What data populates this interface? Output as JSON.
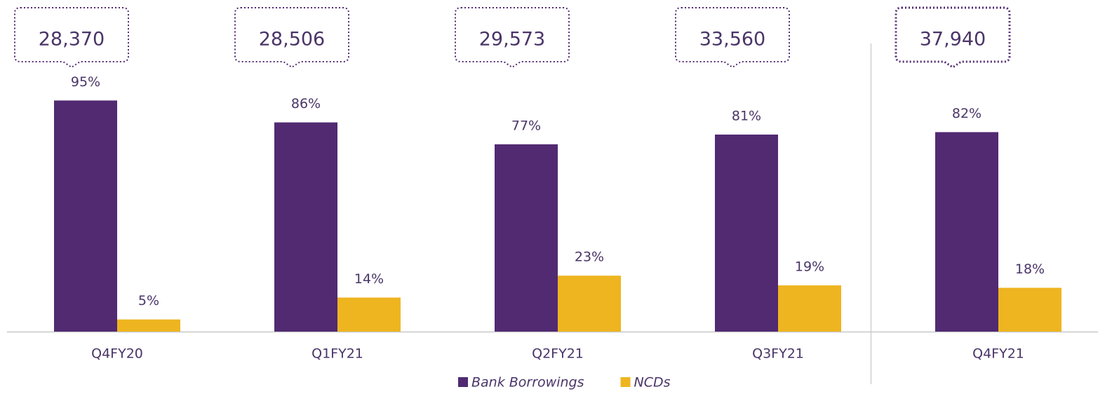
{
  "chart_data": {
    "type": "bar",
    "categories": [
      "Q4FY20",
      "Q1FY21",
      "Q2FY21",
      "Q3FY21",
      "Q4FY21"
    ],
    "series": [
      {
        "name": "Bank Borrowings",
        "color": "#512a72",
        "values": [
          95,
          86,
          77,
          81,
          82
        ],
        "value_labels": [
          "95%",
          "86%",
          "77%",
          "81%",
          "82%"
        ]
      },
      {
        "name": "NCDs",
        "color": "#eeb520",
        "values": [
          5,
          14,
          23,
          19,
          18
        ],
        "value_labels": [
          "5%",
          "14%",
          "23%",
          "19%",
          "18%"
        ]
      }
    ],
    "totals": {
      "values": [
        28370,
        28506,
        29573,
        33560,
        37940
      ],
      "value_labels": [
        "28,370",
        "28,506",
        "29,573",
        "33,560",
        "37,940"
      ]
    },
    "ylim": [
      0,
      100
    ],
    "legend": "bottom"
  }
}
